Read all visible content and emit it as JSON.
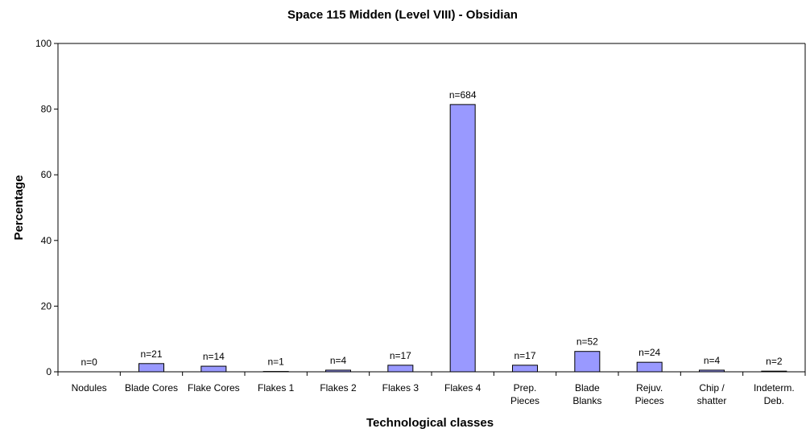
{
  "chart_data": {
    "type": "bar",
    "title": "Space 115 Midden (Level VIII) - Obsidian",
    "xlabel": "Technological classes",
    "ylabel": "Percentage",
    "ylim": [
      0,
      100
    ],
    "yticks": [
      "0",
      "20",
      "40",
      "60",
      "80",
      "100"
    ],
    "grid": false,
    "legend": "none",
    "colors": {
      "bar": "#9999ff",
      "bar_stroke": "#000000",
      "axis": "#000000"
    },
    "categories": [
      [
        "Nodules"
      ],
      [
        "Blade Cores"
      ],
      [
        "Flake Cores"
      ],
      [
        "Flakes 1"
      ],
      [
        "Flakes 2"
      ],
      [
        "Flakes 3"
      ],
      [
        "Flakes 4"
      ],
      [
        "Prep.",
        "Pieces"
      ],
      [
        "Blade",
        "Blanks"
      ],
      [
        "Rejuv.",
        "Pieces"
      ],
      [
        "Chip /",
        "shatter"
      ],
      [
        "Indeterm.",
        "Deb."
      ]
    ],
    "values": [
      0,
      2.5,
      1.7,
      0.1,
      0.5,
      2.0,
      81.4,
      2.0,
      6.2,
      2.9,
      0.5,
      0.2
    ],
    "data_labels": [
      "n=0",
      "n=21",
      "n=14",
      "n=1",
      "n=4",
      "n=17",
      "n=684",
      "n=17",
      "n=52",
      "n=24",
      "n=4",
      "n=2"
    ]
  }
}
